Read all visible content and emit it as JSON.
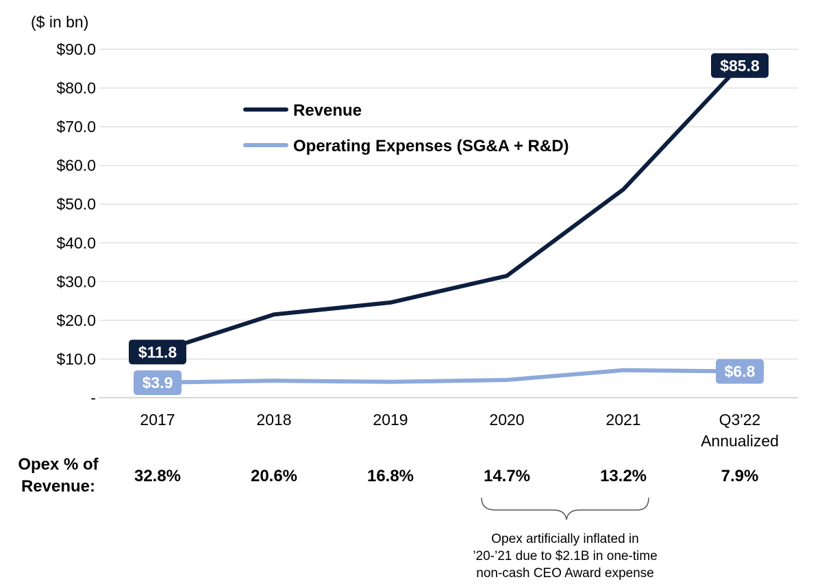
{
  "chart_data": {
    "type": "line",
    "unit_label": "($ in bn)",
    "categories": [
      "2017",
      "2018",
      "2019",
      "2020",
      "2021",
      "Q3'22\nAnnualized"
    ],
    "ylim": [
      0,
      90
    ],
    "y_ticks": [
      {
        "value": 0,
        "label": "-"
      },
      {
        "value": 10,
        "label": "$10.0"
      },
      {
        "value": 20,
        "label": "$20.0"
      },
      {
        "value": 30,
        "label": "$30.0"
      },
      {
        "value": 40,
        "label": "$40.0"
      },
      {
        "value": 50,
        "label": "$50.0"
      },
      {
        "value": 60,
        "label": "$60.0"
      },
      {
        "value": 70,
        "label": "$70.0"
      },
      {
        "value": 80,
        "label": "$80.0"
      },
      {
        "value": 90,
        "label": "$90.0"
      }
    ],
    "grid": true,
    "legend_position": "upper-left",
    "series": [
      {
        "name": "Revenue",
        "color": "#0d1f3f",
        "values": [
          11.8,
          21.5,
          24.6,
          31.5,
          53.8,
          85.8
        ],
        "callouts": [
          {
            "index": 0,
            "text": "$11.8"
          },
          {
            "index": 5,
            "text": "$85.8"
          }
        ]
      },
      {
        "name": "Operating Expenses (SG&A + R&D)",
        "color": "#8ea9db",
        "values": [
          3.9,
          4.4,
          4.1,
          4.6,
          7.1,
          6.8
        ],
        "callouts": [
          {
            "index": 0,
            "text": "$3.9"
          },
          {
            "index": 5,
            "text": "$6.8"
          }
        ]
      }
    ],
    "opex_pct_label": [
      "Opex % of",
      "Revenue:"
    ],
    "opex_pct": [
      "32.8%",
      "20.6%",
      "16.8%",
      "14.7%",
      "13.2%",
      "7.9%"
    ],
    "annotation": {
      "lines": [
        "Opex artificially inflated in",
        "’20-’21 due to $2.1B in one-time",
        "non-cash CEO Award expense"
      ],
      "span": [
        "2020",
        "2021"
      ]
    }
  }
}
